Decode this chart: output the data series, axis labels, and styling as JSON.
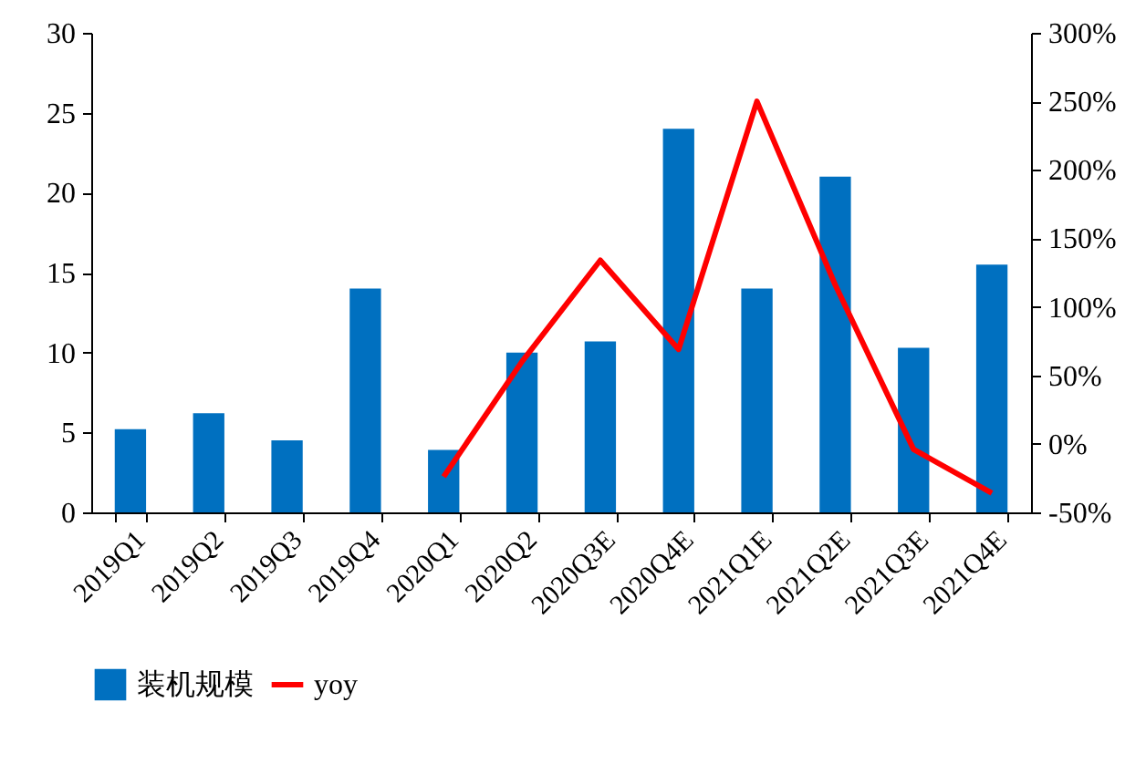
{
  "chart_data": {
    "type": "bar",
    "categories": [
      "2019Q1",
      "2019Q2",
      "2019Q3",
      "2019Q4",
      "2020Q1",
      "2020Q2",
      "2020Q3E",
      "2020Q4E",
      "2021Q1E",
      "2021Q2E",
      "2021Q3E",
      "2021Q4E"
    ],
    "series": [
      {
        "name": "装机规模",
        "color": "#0070c0",
        "values": [
          5.2,
          6.2,
          4.5,
          14.0,
          3.9,
          10.0,
          10.7,
          24.0,
          14.0,
          21.0,
          10.3,
          15.5
        ]
      },
      {
        "name": "yoy",
        "type": "line",
        "axis": "y2",
        "color": "#ff0000",
        "values": [
          null,
          null,
          null,
          null,
          -24,
          60,
          134,
          69,
          250,
          116,
          -4,
          -36
        ]
      }
    ],
    "ylim": [
      0,
      30
    ],
    "yticks": [
      0,
      5,
      10,
      15,
      20,
      25,
      30
    ],
    "y2lim": [
      -50,
      300
    ],
    "y2ticks": [
      {
        "value": -50,
        "label": "-50%"
      },
      {
        "value": 0,
        "label": "0%"
      },
      {
        "value": 50,
        "label": "50%"
      },
      {
        "value": 100,
        "label": "100%"
      },
      {
        "value": 150,
        "label": "150%"
      },
      {
        "value": 200,
        "label": "200%"
      },
      {
        "value": 250,
        "label": "250%"
      },
      {
        "value": 300,
        "label": "300%"
      }
    ],
    "grid": false,
    "legend": "bottom",
    "marker": "none",
    "line_style": "solid"
  }
}
